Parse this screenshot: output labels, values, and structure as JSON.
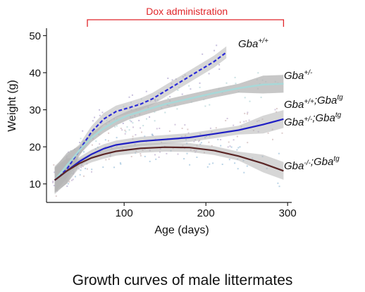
{
  "caption": "Growth curves of male littermates",
  "colors": {
    "gba_wt": "#2a2ad8",
    "gba_het": "#a8d8d8",
    "gba_tg": "#1f1fc4",
    "gba_ko_tg": "#5a2525",
    "dox": "#e0262a",
    "ribbon": "#b4b4b4",
    "axis": "#222222"
  },
  "chart_data": {
    "type": "line",
    "title": "",
    "xlabel": "Age (days)",
    "ylabel": "Weight (g)",
    "xlim": [
      5,
      305
    ],
    "ylim": [
      5,
      52
    ],
    "xticks": [
      100,
      200,
      300
    ],
    "yticks": [
      10,
      20,
      30,
      40,
      50
    ],
    "grid": false,
    "legend": "direct labels at line ends",
    "annotations": [
      {
        "text": "Dox administration",
        "x_start": 55,
        "x_end": 295
      }
    ],
    "series": [
      {
        "name": "Gba+/+",
        "label_base": "Gba",
        "label_sup": "+/+",
        "style": "dashed",
        "x": [
          15,
          30,
          45,
          60,
          75,
          90,
          105,
          120,
          135,
          150,
          165,
          180,
          195,
          210,
          225
        ],
        "y": [
          11,
          14,
          19,
          24,
          27.5,
          29.5,
          30.5,
          31.5,
          33,
          35,
          37,
          39,
          41,
          43,
          45.5
        ]
      },
      {
        "name": "Gba+/-",
        "label_base": "Gba",
        "label_sup": "+/-",
        "style": "solid",
        "x": [
          15,
          30,
          45,
          60,
          75,
          90,
          105,
          120,
          150,
          180,
          210,
          240,
          270,
          295
        ],
        "y": [
          11,
          15,
          19,
          22.5,
          25,
          27,
          28.5,
          29.5,
          31.5,
          33,
          34.5,
          35.8,
          36.8,
          37
        ]
      },
      {
        "name": "Gba+/+;Gbatg",
        "label_base": "Gba",
        "label_sup": "+/+",
        "label_base2": ";Gba",
        "label_sup2": "tg",
        "style": "solid",
        "x": [
          15,
          30,
          45,
          60,
          75,
          90,
          105,
          120,
          150,
          180,
          210,
          240,
          270,
          295
        ],
        "y": [
          11,
          13.5,
          16,
          18,
          19.5,
          20.5,
          21,
          21.5,
          22,
          22.5,
          23.5,
          24.5,
          26,
          27.5
        ]
      },
      {
        "name": "Gba+/-;Gbatg",
        "label_base": "Gba",
        "label_sup": "+/-",
        "label_base2": ";Gba",
        "label_sup2": "tg",
        "style": "solid",
        "x": [
          15,
          30,
          45,
          60,
          75,
          90,
          105,
          120,
          150,
          180,
          210,
          240,
          270,
          295
        ],
        "y": [
          11,
          13.5,
          16,
          18,
          19.5,
          20.5,
          21,
          21.5,
          22,
          22.5,
          23.5,
          24.5,
          26,
          27.5
        ]
      },
      {
        "name": "Gba-/-;Gbatg",
        "label_base": "Gba",
        "label_sup": "-/-",
        "label_base2": ";Gba",
        "label_sup2": "tg",
        "style": "solid",
        "x": [
          15,
          30,
          45,
          60,
          75,
          90,
          105,
          120,
          150,
          180,
          210,
          240,
          270,
          295
        ],
        "y": [
          11,
          13.5,
          15.5,
          17,
          18,
          18.8,
          19.2,
          19.6,
          19.9,
          19.8,
          19,
          17.5,
          15.5,
          13.5
        ]
      }
    ]
  }
}
